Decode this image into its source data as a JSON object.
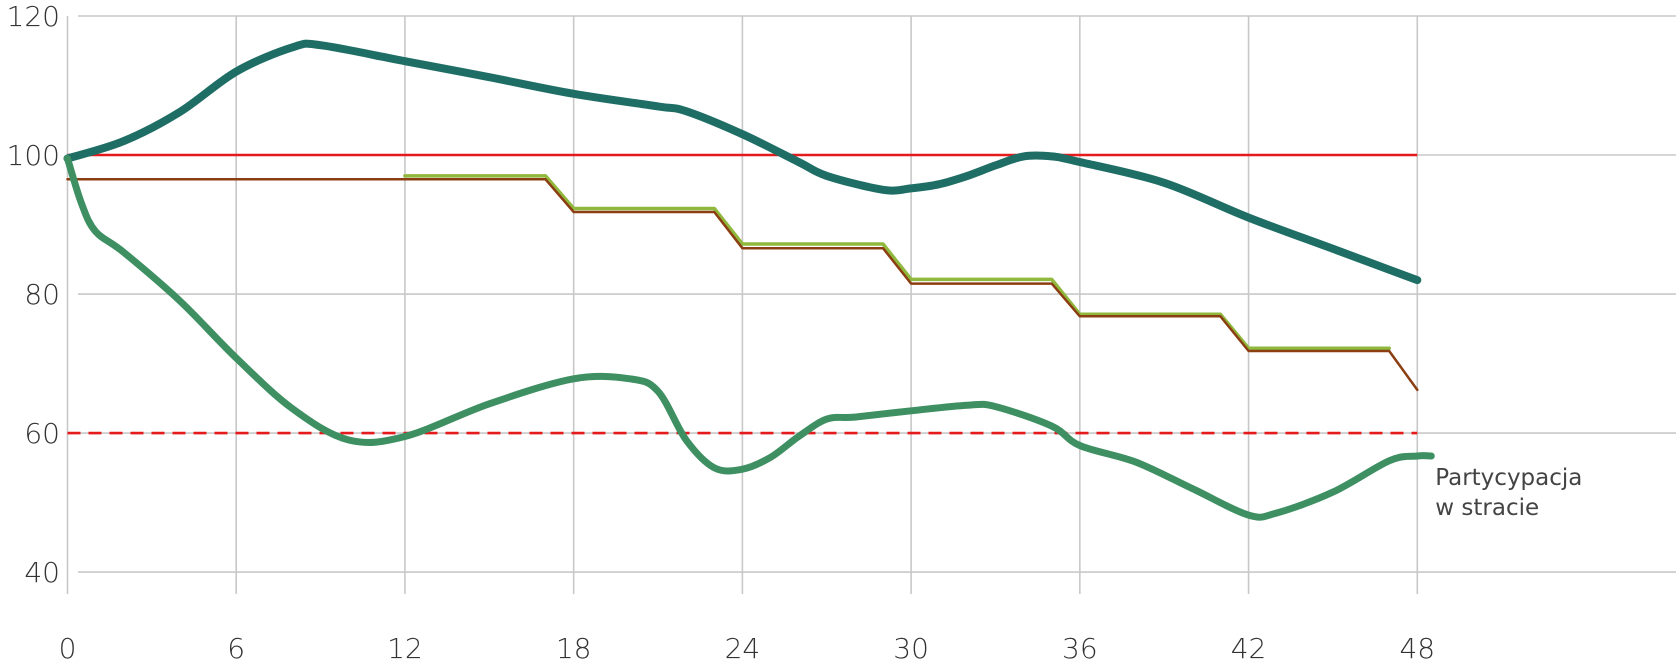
{
  "chart_data": {
    "type": "line",
    "x_ticks": [
      0,
      6,
      12,
      18,
      24,
      30,
      36,
      42,
      48
    ],
    "y_ticks": [
      40,
      60,
      80,
      100,
      120
    ],
    "xlim": [
      -2.4,
      57.2
    ],
    "ylim": [
      39,
      120
    ],
    "grid": true,
    "reference_lines": [
      {
        "y": 100,
        "style": "solid",
        "color": "#e41a1c",
        "x_range": [
          0,
          48
        ]
      },
      {
        "y": 60,
        "style": "dashed",
        "color": "#e41a1c",
        "x_range": [
          0,
          48
        ]
      }
    ],
    "annotations": [
      {
        "lines": [
          "Partycypacja",
          "w stracie"
        ]
      }
    ],
    "series": [
      {
        "color": "#1f6e66",
        "width": 8,
        "smooth": true,
        "points": [
          [
            0,
            99.5
          ],
          [
            2,
            102
          ],
          [
            4,
            106.2
          ],
          [
            6,
            112
          ],
          [
            8,
            115.5
          ],
          [
            9,
            115.8
          ],
          [
            12,
            113.5
          ],
          [
            15,
            111.2
          ],
          [
            18,
            108.8
          ],
          [
            21,
            107
          ],
          [
            22,
            106.3
          ],
          [
            24,
            103
          ],
          [
            26,
            99
          ],
          [
            27,
            97
          ],
          [
            29,
            95
          ],
          [
            30,
            95.2
          ],
          [
            31,
            95.8
          ],
          [
            32,
            97
          ],
          [
            33,
            98.5
          ],
          [
            34,
            99.8
          ],
          [
            35,
            99.8
          ],
          [
            36,
            99
          ],
          [
            39,
            96
          ],
          [
            42,
            91
          ],
          [
            45,
            86.5
          ],
          [
            48,
            82
          ]
        ]
      },
      {
        "color": "#8fb83c",
        "width": 3.5,
        "smooth": false,
        "points": [
          [
            12,
            97
          ],
          [
            17,
            97
          ],
          [
            18,
            92.3
          ],
          [
            23,
            92.3
          ],
          [
            24,
            87.2
          ],
          [
            29,
            87.2
          ],
          [
            30,
            82.1
          ],
          [
            35,
            82.1
          ],
          [
            36,
            77.1
          ],
          [
            41,
            77.1
          ],
          [
            42,
            72.2
          ],
          [
            47,
            72.2
          ]
        ]
      },
      {
        "color": "#8b3e12",
        "width": 2.5,
        "smooth": false,
        "points": [
          [
            0,
            96.5
          ],
          [
            17,
            96.5
          ],
          [
            18,
            91.8
          ],
          [
            23,
            91.8
          ],
          [
            24,
            86.6
          ],
          [
            29,
            86.6
          ],
          [
            30,
            81.5
          ],
          [
            35,
            81.5
          ],
          [
            36,
            76.8
          ],
          [
            41,
            76.8
          ],
          [
            42,
            71.8
          ],
          [
            47,
            71.8
          ],
          [
            48,
            66.2
          ]
        ]
      },
      {
        "color": "#3e9062",
        "width": 7,
        "smooth": true,
        "points": [
          [
            0,
            99.5
          ],
          [
            0.5,
            93
          ],
          [
            1,
            89
          ],
          [
            2,
            86
          ],
          [
            4,
            79
          ],
          [
            6,
            70.8
          ],
          [
            8,
            63.5
          ],
          [
            10,
            59
          ],
          [
            12,
            59.5
          ],
          [
            15,
            64.2
          ],
          [
            18,
            67.8
          ],
          [
            20,
            67.8
          ],
          [
            21,
            66
          ],
          [
            22,
            59
          ],
          [
            23,
            55
          ],
          [
            24,
            54.8
          ],
          [
            25,
            56.5
          ],
          [
            26,
            59.5
          ],
          [
            27,
            62
          ],
          [
            28,
            62.3
          ],
          [
            30,
            63.2
          ],
          [
            32,
            64
          ],
          [
            33,
            63.8
          ],
          [
            35,
            61
          ],
          [
            36,
            58.2
          ],
          [
            38,
            55.8
          ],
          [
            40,
            52
          ],
          [
            42,
            48.2
          ],
          [
            43,
            48.5
          ],
          [
            45,
            51.5
          ],
          [
            47,
            56
          ],
          [
            48,
            56.7
          ],
          [
            48.5,
            56.7
          ]
        ]
      }
    ]
  }
}
